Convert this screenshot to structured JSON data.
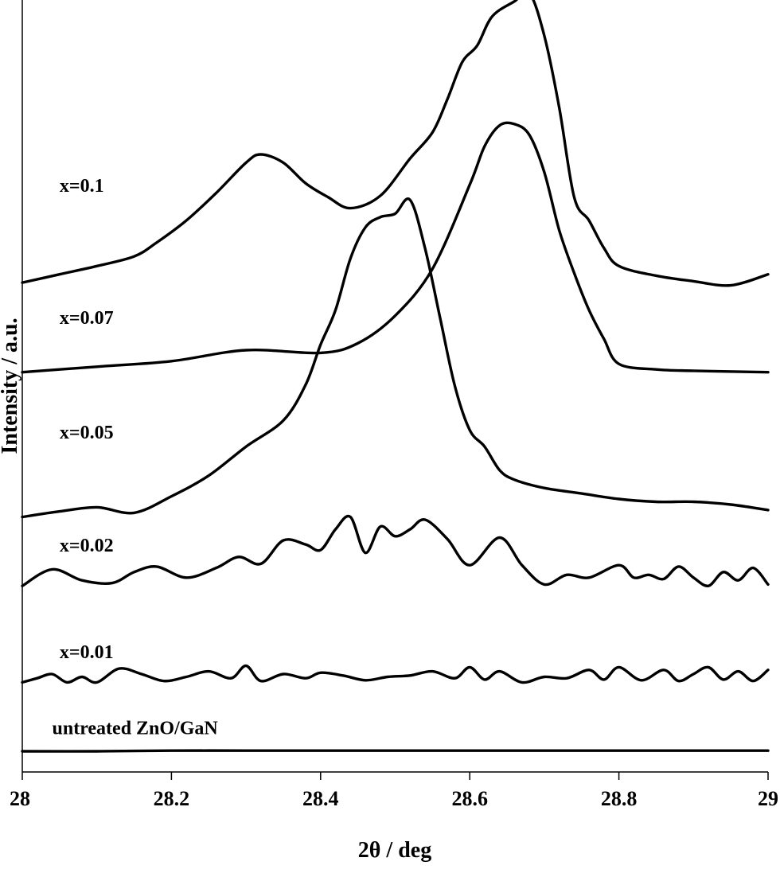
{
  "chart_data": {
    "type": "line",
    "title": "",
    "xlabel": "2θ / deg",
    "ylabel": "Intensity / a.u.",
    "xlim": [
      28,
      29
    ],
    "xticks": [
      28,
      28.2,
      28.4,
      28.6,
      28.8,
      29
    ],
    "xtick_labels": [
      "28",
      "28.2",
      "28.4",
      "28.6",
      "28.8",
      "29"
    ],
    "yticks_shown": false,
    "grid": false,
    "legend": "none",
    "line_color": "#000000",
    "ylim": [
      0,
      11.2
    ],
    "series": [
      {
        "name": "untreated ZnO/GaN",
        "x": [
          28.0,
          28.1,
          28.2,
          28.3,
          28.4,
          28.5,
          28.6,
          28.7,
          28.8,
          28.9,
          29.0
        ],
        "y": [
          0.3,
          0.3,
          0.31,
          0.31,
          0.31,
          0.31,
          0.31,
          0.31,
          0.31,
          0.31,
          0.31
        ]
      },
      {
        "name": "x=0.01",
        "x": [
          28.0,
          28.02,
          28.04,
          28.06,
          28.08,
          28.1,
          28.13,
          28.16,
          28.19,
          28.22,
          28.25,
          28.28,
          28.3,
          28.32,
          28.35,
          28.38,
          28.4,
          28.43,
          28.46,
          28.49,
          28.52,
          28.55,
          28.58,
          28.6,
          28.62,
          28.64,
          28.67,
          28.7,
          28.73,
          28.76,
          28.78,
          28.8,
          28.83,
          28.86,
          28.88,
          28.9,
          28.92,
          28.94,
          28.96,
          28.98,
          29.0
        ],
        "y": [
          1.3,
          1.36,
          1.42,
          1.3,
          1.38,
          1.3,
          1.5,
          1.42,
          1.32,
          1.38,
          1.46,
          1.36,
          1.54,
          1.32,
          1.42,
          1.36,
          1.44,
          1.4,
          1.33,
          1.38,
          1.4,
          1.46,
          1.36,
          1.52,
          1.34,
          1.46,
          1.3,
          1.38,
          1.36,
          1.48,
          1.34,
          1.52,
          1.33,
          1.48,
          1.32,
          1.42,
          1.52,
          1.34,
          1.46,
          1.32,
          1.48
        ]
      },
      {
        "name": "x=0.02",
        "x": [
          28.0,
          28.04,
          28.08,
          28.12,
          28.15,
          28.18,
          28.22,
          28.26,
          28.29,
          28.32,
          28.35,
          28.38,
          28.4,
          28.42,
          28.44,
          28.46,
          28.48,
          28.5,
          28.52,
          28.54,
          28.57,
          28.6,
          28.64,
          28.67,
          28.7,
          28.73,
          28.76,
          28.8,
          28.82,
          28.84,
          28.86,
          28.88,
          28.9,
          28.92,
          28.94,
          28.96,
          28.98,
          29.0
        ],
        "y": [
          2.7,
          2.94,
          2.78,
          2.74,
          2.9,
          2.98,
          2.82,
          2.96,
          3.12,
          3.02,
          3.36,
          3.3,
          3.22,
          3.52,
          3.7,
          3.18,
          3.56,
          3.42,
          3.52,
          3.66,
          3.38,
          3.0,
          3.4,
          3.0,
          2.72,
          2.86,
          2.82,
          3.0,
          2.82,
          2.86,
          2.8,
          2.98,
          2.82,
          2.7,
          2.9,
          2.78,
          2.96,
          2.72
        ]
      },
      {
        "name": "x=0.05",
        "x": [
          28.0,
          28.05,
          28.1,
          28.15,
          28.2,
          28.25,
          28.3,
          28.35,
          28.38,
          28.4,
          28.42,
          28.44,
          28.46,
          28.48,
          28.5,
          28.52,
          28.54,
          28.56,
          28.58,
          28.6,
          28.62,
          28.64,
          28.66,
          28.7,
          28.75,
          28.8,
          28.85,
          28.9,
          28.95,
          29.0
        ],
        "y": [
          3.7,
          3.78,
          3.84,
          3.76,
          4.0,
          4.3,
          4.72,
          5.1,
          5.62,
          6.2,
          6.7,
          7.45,
          7.9,
          8.05,
          8.1,
          8.3,
          7.6,
          6.6,
          5.6,
          4.96,
          4.72,
          4.38,
          4.24,
          4.12,
          4.04,
          3.96,
          3.92,
          3.92,
          3.88,
          3.8
        ]
      },
      {
        "name": "x=0.07",
        "x": [
          28.0,
          28.1,
          28.2,
          28.3,
          28.4,
          28.45,
          28.5,
          28.55,
          28.6,
          28.62,
          28.64,
          28.66,
          28.68,
          28.7,
          28.72,
          28.74,
          28.76,
          28.78,
          28.8,
          28.85,
          28.9,
          29.0
        ],
        "y": [
          5.8,
          5.88,
          5.96,
          6.12,
          6.08,
          6.22,
          6.62,
          7.3,
          8.52,
          9.08,
          9.38,
          9.4,
          9.24,
          8.7,
          7.86,
          7.24,
          6.7,
          6.28,
          5.92,
          5.84,
          5.82,
          5.8
        ]
      },
      {
        "name": "x=0.1",
        "x": [
          28.0,
          28.05,
          28.1,
          28.15,
          28.18,
          28.22,
          28.26,
          28.3,
          28.32,
          28.35,
          28.38,
          28.41,
          28.44,
          28.48,
          28.52,
          28.55,
          28.57,
          28.59,
          28.61,
          28.63,
          28.66,
          28.68,
          28.7,
          28.72,
          28.74,
          28.76,
          28.78,
          28.8,
          28.85,
          28.9,
          28.95,
          29.0
        ],
        "y": [
          7.1,
          7.22,
          7.34,
          7.48,
          7.68,
          8.0,
          8.4,
          8.84,
          8.96,
          8.84,
          8.54,
          8.34,
          8.18,
          8.36,
          8.9,
          9.28,
          9.76,
          10.3,
          10.54,
          10.96,
          11.18,
          11.3,
          10.68,
          9.64,
          8.34,
          8.0,
          7.6,
          7.34,
          7.2,
          7.12,
          7.06,
          7.22
        ]
      }
    ],
    "series_label_positions": {
      "untreated ZnO/GaN": [
        28.04,
        0.55
      ],
      "x=0.01": [
        28.05,
        1.65
      ],
      "x=0.02": [
        28.05,
        3.2
      ],
      "x=0.05": [
        28.05,
        4.84
      ],
      "x=0.07": [
        28.05,
        6.5
      ],
      "x=0.1": [
        28.05,
        8.42
      ]
    }
  }
}
